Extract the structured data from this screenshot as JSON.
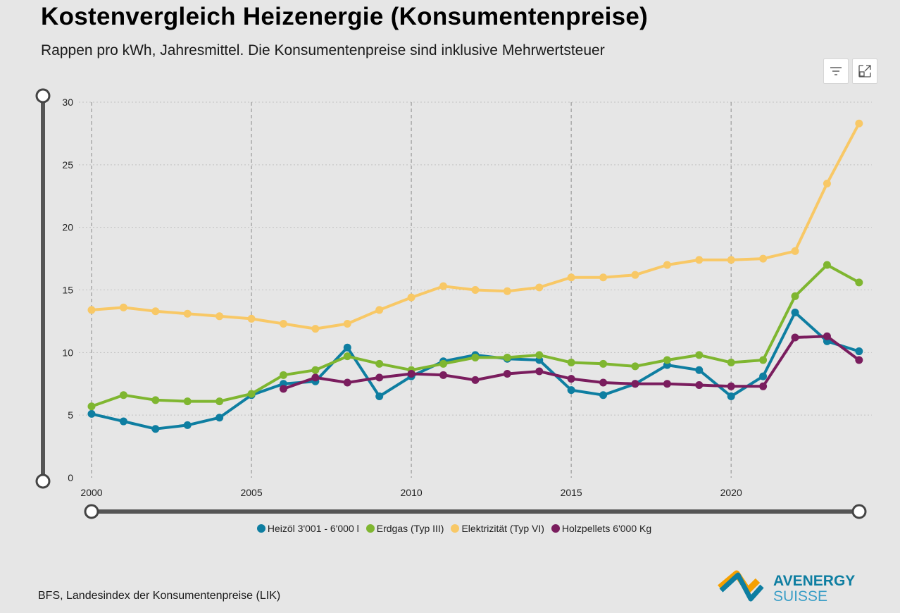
{
  "header": {
    "title": "Kostenvergleich Heizenergie (Konsumentenpreise)",
    "subtitle": "Rappen pro kWh, Jahresmittel. Die Konsumentenpreise sind inklusive Mehrwertsteuer"
  },
  "toolbar": {
    "filter_icon": "filter-icon",
    "expand_icon": "expand-icon"
  },
  "footer": {
    "source": "BFS, Landesindex der Konsumentenpreise (LIK)"
  },
  "logo": {
    "line1": "AVENERGY",
    "line2": "SUISSE"
  },
  "chart_data": {
    "type": "line",
    "x": [
      2000,
      2001,
      2002,
      2003,
      2004,
      2005,
      2006,
      2007,
      2008,
      2009,
      2010,
      2011,
      2012,
      2013,
      2014,
      2015,
      2016,
      2017,
      2018,
      2019,
      2020,
      2021,
      2022,
      2023,
      2024
    ],
    "xlim": [
      2000,
      2024.4
    ],
    "ylim": [
      0,
      30
    ],
    "yticks": [
      0,
      5,
      10,
      15,
      20,
      25,
      30
    ],
    "xticks": [
      2000,
      2005,
      2010,
      2015,
      2020
    ],
    "grid": {
      "horizontal": "dotted",
      "vertical": "dashed"
    },
    "legend_position": "bottom",
    "series": [
      {
        "name": "Heizöl 3'001 - 6'000 l",
        "color": "#0e7ea1",
        "values": [
          5.1,
          4.5,
          3.9,
          4.2,
          4.8,
          6.6,
          7.5,
          7.7,
          10.4,
          6.5,
          8.1,
          9.3,
          9.8,
          9.5,
          9.4,
          7.0,
          6.6,
          7.5,
          9.0,
          8.6,
          6.5,
          8.1,
          13.2,
          10.9,
          10.1
        ]
      },
      {
        "name": "Erdgas (Typ III)",
        "color": "#7fb630",
        "values": [
          5.7,
          6.6,
          6.2,
          6.1,
          6.1,
          6.7,
          8.2,
          8.6,
          9.7,
          9.1,
          8.6,
          9.1,
          9.6,
          9.6,
          9.8,
          9.2,
          9.1,
          8.9,
          9.4,
          9.8,
          9.2,
          9.4,
          14.5,
          17.0,
          15.6
        ]
      },
      {
        "name": "Elektrizität (Typ VI)",
        "color": "#f8c866",
        "values": [
          13.4,
          13.6,
          13.3,
          13.1,
          12.9,
          12.7,
          12.3,
          11.9,
          12.3,
          13.4,
          14.4,
          15.3,
          15.0,
          14.9,
          15.2,
          16.0,
          16.0,
          16.2,
          17.0,
          17.4,
          17.4,
          17.5,
          18.1,
          23.5,
          28.3
        ]
      },
      {
        "name": "Holzpellets 6'000 Kg",
        "color": "#7a1d5e",
        "values": [
          null,
          null,
          null,
          null,
          null,
          null,
          7.1,
          8.0,
          7.6,
          8.0,
          8.3,
          8.2,
          7.8,
          8.3,
          8.5,
          7.9,
          7.6,
          7.5,
          7.5,
          7.4,
          7.3,
          7.3,
          11.2,
          11.3,
          9.4
        ]
      }
    ]
  }
}
